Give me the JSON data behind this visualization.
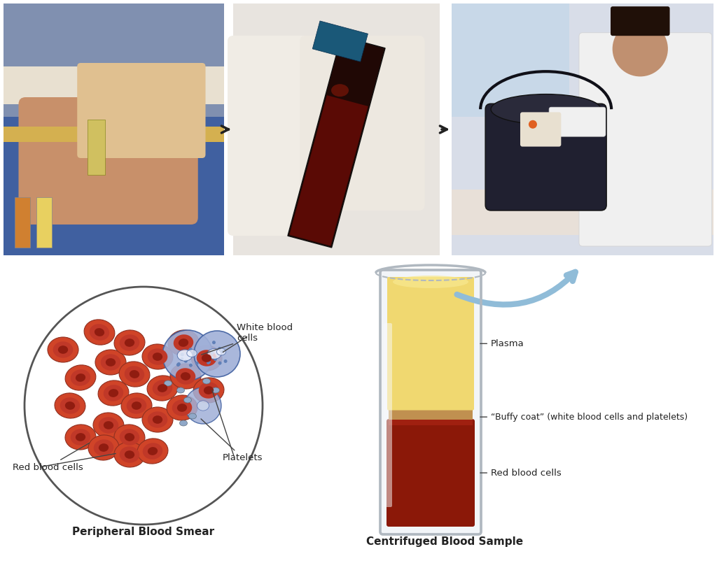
{
  "background_color": "#ffffff",
  "photo1_bg": "#b8956a",
  "photo1_arm": "#c8a478",
  "photo1_bandage": "#d4b870",
  "photo1_glove": "#e8d8b0",
  "photo1_tube_small": "#c87830",
  "photo2_bg": "#e8e4e0",
  "photo2_glove": "#f0ece8",
  "photo2_tube_body": "#2a0805",
  "photo2_tube_cap": "#1a5878",
  "photo2_tube_blood": "#8a1505",
  "photo3_bg": "#d8dce0",
  "photo3_coat": "#f0f0f0",
  "photo3_machine": "#1a1a2a",
  "photo3_machine2": "#2a2a3a",
  "photo3_skin": "#c89070",
  "arrow_black": "#222222",
  "arrow_blue": "#90bcd8",
  "blood_smear": {
    "circle_color": "#555555",
    "rbc_outer": "#d04428",
    "rbc_inner": "#b83820",
    "rbc_highlight": "#e05840",
    "wbc_outer": "#8090c0",
    "wbc_inner": "#a0b0d8",
    "wbc_nucleus": "#f0f4ff",
    "platelet_color": "#90a8c8",
    "label_rbc": "Red blood cells",
    "label_wbc": "White blood\ncells",
    "label_platelets": "Platelets",
    "title": "Peripheral Blood Smear"
  },
  "tube": {
    "glass_edge": "#b0b8c0",
    "glass_fill": "#e8eef4",
    "glass_shine": "#f8fafc",
    "plasma_color": "#f0d870",
    "plasma_top": "#f8e890",
    "buffy_color": "#c09050",
    "rbc_color": "#8b1808",
    "rbc_top": "#a02010",
    "label_plasma": "Plasma",
    "label_buffy": "“Buffy coat” (white blood cells and platelets)",
    "label_rbc": "Red blood cells",
    "title": "Centrifuged Blood Sample"
  },
  "text_color": "#222222",
  "label_fontsize": 9.5,
  "title_fontsize": 11
}
